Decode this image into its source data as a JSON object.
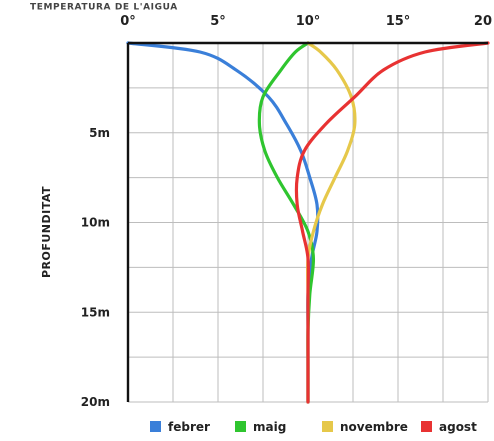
{
  "chart_data": {
    "type": "line",
    "title": "TEMPERATURA DE L'AIGUA",
    "xlabel": "",
    "ylabel": "PROFUNDITAT",
    "x_ticks": [
      "0°",
      "5°",
      "10°",
      "15°",
      "20"
    ],
    "y_ticks": [
      "5m",
      "10m",
      "15m",
      "20m"
    ],
    "xlim": [
      0,
      20
    ],
    "ylim": [
      0,
      20
    ],
    "y_inverted": true,
    "grid": true,
    "legend_position": "bottom",
    "x_axis_position": "top",
    "series": [
      {
        "name": "febrer",
        "color": "#3a7fd9",
        "points": [
          [
            0,
            0
          ],
          [
            4,
            0.5
          ],
          [
            6,
            1.5
          ],
          [
            7.8,
            3
          ],
          [
            8.8,
            4.5
          ],
          [
            9.6,
            6
          ],
          [
            10.1,
            7.5
          ],
          [
            10.5,
            9
          ],
          [
            10.5,
            10.5
          ],
          [
            10.2,
            12
          ],
          [
            10.0,
            14
          ],
          [
            10.0,
            16
          ],
          [
            10.0,
            18
          ],
          [
            10.0,
            20
          ]
        ]
      },
      {
        "name": "maig",
        "color": "#2fc52f",
        "points": [
          [
            10,
            0
          ],
          [
            9.3,
            0.5
          ],
          [
            8.5,
            1.5
          ],
          [
            7.5,
            3
          ],
          [
            7.3,
            4.5
          ],
          [
            7.6,
            6
          ],
          [
            8.3,
            7.5
          ],
          [
            9.2,
            9
          ],
          [
            10.0,
            10.5
          ],
          [
            10.3,
            12
          ],
          [
            10.1,
            14
          ],
          [
            10.0,
            16
          ],
          [
            10.0,
            18
          ],
          [
            10.0,
            20
          ]
        ]
      },
      {
        "name": "novembre",
        "color": "#e6c84a",
        "points": [
          [
            10,
            0
          ],
          [
            10.7,
            0.5
          ],
          [
            11.6,
            1.5
          ],
          [
            12.4,
            3
          ],
          [
            12.6,
            4.5
          ],
          [
            12.2,
            6
          ],
          [
            11.5,
            7.5
          ],
          [
            10.8,
            9
          ],
          [
            10.3,
            10.5
          ],
          [
            10.0,
            12
          ],
          [
            10.0,
            14
          ],
          [
            10.0,
            16
          ],
          [
            10.0,
            18
          ],
          [
            10.0,
            20
          ]
        ]
      },
      {
        "name": "agost",
        "color": "#e83232",
        "points": [
          [
            20,
            0
          ],
          [
            16.5,
            0.5
          ],
          [
            14.2,
            1.5
          ],
          [
            12.6,
            3
          ],
          [
            11.0,
            4.5
          ],
          [
            9.8,
            6
          ],
          [
            9.4,
            7.5
          ],
          [
            9.4,
            9
          ],
          [
            9.7,
            10.5
          ],
          [
            10.0,
            12
          ],
          [
            10.0,
            14
          ],
          [
            10.0,
            16
          ],
          [
            10.0,
            18
          ],
          [
            10.0,
            20
          ]
        ]
      }
    ]
  }
}
